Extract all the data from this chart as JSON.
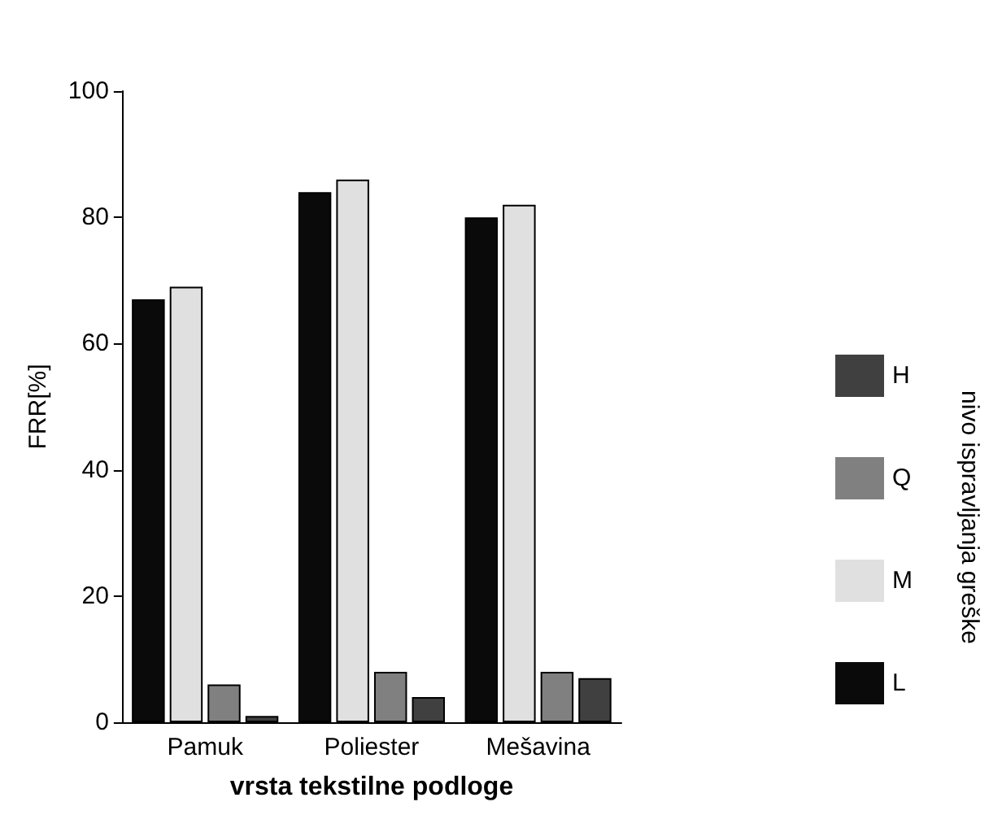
{
  "chart_data": {
    "type": "bar",
    "xlabel": "vrsta tekstilne podloge",
    "ylabel": "FRR[%]",
    "legend_title": "nivo ispravljanja greške",
    "categories": [
      "Pamuk",
      "Poliester",
      "Mešavina"
    ],
    "series": [
      {
        "name": "L",
        "color": "#0a0a0a",
        "values": [
          67,
          84,
          80
        ]
      },
      {
        "name": "M",
        "color": "#e0e0e0",
        "values": [
          69,
          86,
          82
        ]
      },
      {
        "name": "Q",
        "color": "#808080",
        "values": [
          6,
          8,
          8
        ]
      },
      {
        "name": "H",
        "color": "#404040",
        "values": [
          1,
          4,
          7
        ]
      }
    ],
    "ylim": [
      0,
      100
    ],
    "yticks": [
      0,
      20,
      40,
      60,
      80,
      100
    ],
    "grid": false,
    "legend": "right"
  }
}
